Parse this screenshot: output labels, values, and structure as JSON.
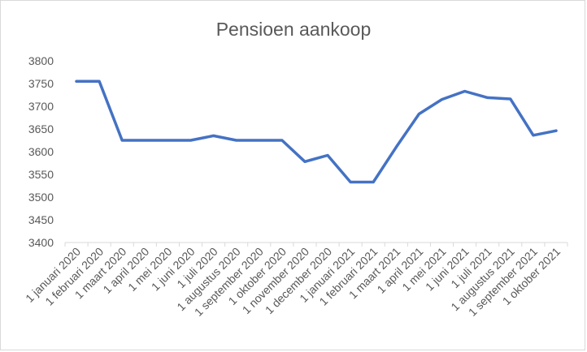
{
  "chart_data": {
    "type": "line",
    "title": "Pensioen aankoop",
    "xlabel": "",
    "ylabel": "",
    "ylim": [
      3400,
      3800
    ],
    "yticks": [
      3400,
      3450,
      3500,
      3550,
      3600,
      3650,
      3700,
      3750,
      3800
    ],
    "grid": false,
    "legend": "none",
    "color": "#4472c4",
    "categories": [
      "1 januari 2020",
      "1 februari 2020",
      "1 maart 2020",
      "1 april 2020",
      "1 mei 2020",
      "1 juni 2020",
      "1 juli 2020",
      "1 augustus 2020",
      "1 september 2020",
      "1 oktober 2020",
      "1 november 2020",
      "1 december 2020",
      "1 januari 2021",
      "1 februari 2021",
      "1 maart 2021",
      "1 april 2021",
      "1 mei 2021",
      "1 juni 2021",
      "1 juli 2021",
      "1 augustus 2021",
      "1 september 2021",
      "1 oktober 2021"
    ],
    "series": [
      {
        "values": [
          3755,
          3755,
          3625,
          3625,
          3625,
          3625,
          3635,
          3625,
          3625,
          3625,
          3578,
          3592,
          3533,
          3533,
          3610,
          3683,
          3715,
          3733,
          3719,
          3716,
          3636,
          3646
        ]
      }
    ]
  }
}
